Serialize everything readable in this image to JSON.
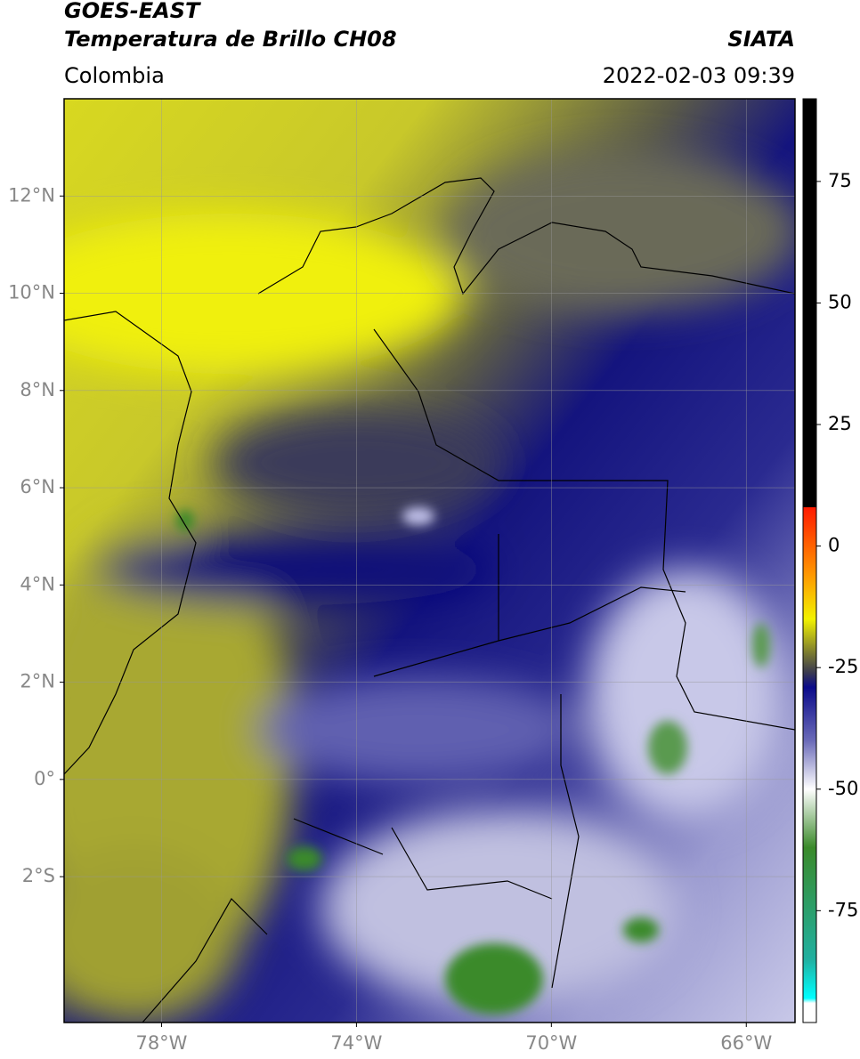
{
  "header": {
    "title": "GOES-EAST",
    "subtitle": "Temperatura de Brillo CH08",
    "source": "SIATA",
    "region": "Colombia",
    "datetime": "2022-02-03 09:39"
  },
  "chart_data": {
    "type": "map",
    "xlim": [
      -80,
      -65
    ],
    "ylim": [
      -5,
      14
    ],
    "xticks": [
      {
        "value": -78,
        "label": "78°W"
      },
      {
        "value": -74,
        "label": "74°W"
      },
      {
        "value": -70,
        "label": "70°W"
      },
      {
        "value": -66,
        "label": "66°W"
      }
    ],
    "yticks": [
      {
        "value": 12,
        "label": "12°N"
      },
      {
        "value": 10,
        "label": "10°N"
      },
      {
        "value": 8,
        "label": "8°N"
      },
      {
        "value": 6,
        "label": "6°N"
      },
      {
        "value": 4,
        "label": "4°N"
      },
      {
        "value": 2,
        "label": "2°N"
      },
      {
        "value": 0,
        "label": "0°"
      },
      {
        "value": -2,
        "label": "2°S"
      }
    ],
    "grid": true,
    "colorbar": {
      "lim": [
        -98,
        92
      ],
      "ticks": [
        75,
        50,
        25,
        0,
        -25,
        -50,
        -75
      ],
      "stops": [
        {
          "value": 92,
          "color": "#000000"
        },
        {
          "value": 8,
          "color": "#000000"
        },
        {
          "value": 8,
          "color": "#ff1a00"
        },
        {
          "value": -6,
          "color": "#ff9900"
        },
        {
          "value": -15,
          "color": "#f2f200"
        },
        {
          "value": -22,
          "color": "#7a7a30"
        },
        {
          "value": -26,
          "color": "#3a3a50"
        },
        {
          "value": -29,
          "color": "#0a0a8a"
        },
        {
          "value": -40,
          "color": "#6a6ab8"
        },
        {
          "value": -50,
          "color": "#ffffff"
        },
        {
          "value": -62,
          "color": "#3a8a2a"
        },
        {
          "value": -85,
          "color": "#20b0a0"
        },
        {
          "value": -93,
          "color": "#00ffff"
        },
        {
          "value": -94,
          "color": "#ffffff"
        },
        {
          "value": -98,
          "color": "#ffffff"
        }
      ]
    }
  }
}
